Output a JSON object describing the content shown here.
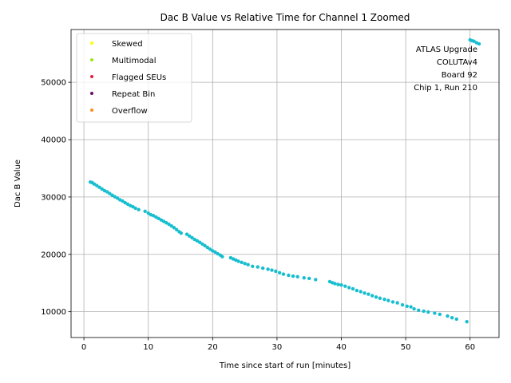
{
  "chart_data": {
    "type": "scatter",
    "title": "Dac B Value vs Relative Time for Channel 1 Zoomed",
    "xlabel": "Time since start of run [minutes]",
    "ylabel": "Dac B Value",
    "xlim": [
      -2,
      64.5
    ],
    "ylim": [
      5500,
      59200
    ],
    "xticks": [
      0,
      10,
      20,
      30,
      40,
      50,
      60
    ],
    "yticks": [
      10000,
      20000,
      30000,
      40000,
      50000
    ],
    "grid": true,
    "legend_position": "top-left",
    "legend": [
      {
        "name": "Skewed",
        "color": "#ffff00"
      },
      {
        "name": "Multimodal",
        "color": "#99e619"
      },
      {
        "name": "Flagged SEUs",
        "color": "#e0223c"
      },
      {
        "name": "Repeat Bin",
        "color": "#6b0f6b"
      },
      {
        "name": "Overflow",
        "color": "#ff8c1a"
      }
    ],
    "annotation": [
      "ATLAS Upgrade",
      "COLUTAv4",
      "Board 92",
      "Chip 1, Run 210"
    ],
    "series": [
      {
        "color": "#17becf",
        "points": [
          [
            1.0,
            32600
          ],
          [
            1.3,
            32500
          ],
          [
            1.6,
            32250
          ],
          [
            2.0,
            32000
          ],
          [
            2.4,
            31700
          ],
          [
            2.8,
            31400
          ],
          [
            3.2,
            31100
          ],
          [
            3.6,
            30900
          ],
          [
            4.0,
            30600
          ],
          [
            4.4,
            30300
          ],
          [
            4.8,
            30050
          ],
          [
            5.2,
            29800
          ],
          [
            5.6,
            29500
          ],
          [
            6.0,
            29300
          ],
          [
            6.4,
            29000
          ],
          [
            6.8,
            28750
          ],
          [
            7.2,
            28500
          ],
          [
            7.6,
            28300
          ],
          [
            8.0,
            28050
          ],
          [
            8.5,
            27800
          ],
          [
            9.5,
            27500
          ],
          [
            10.0,
            27200
          ],
          [
            10.4,
            26900
          ],
          [
            10.8,
            26750
          ],
          [
            11.2,
            26500
          ],
          [
            11.6,
            26250
          ],
          [
            12.0,
            26000
          ],
          [
            12.4,
            25750
          ],
          [
            12.8,
            25500
          ],
          [
            13.2,
            25250
          ],
          [
            13.6,
            24950
          ],
          [
            14.0,
            24650
          ],
          [
            14.4,
            24300
          ],
          [
            14.8,
            23950
          ],
          [
            15.1,
            23700
          ],
          [
            16.0,
            23500
          ],
          [
            16.4,
            23200
          ],
          [
            16.8,
            22900
          ],
          [
            17.2,
            22600
          ],
          [
            17.6,
            22350
          ],
          [
            18.0,
            22100
          ],
          [
            18.4,
            21800
          ],
          [
            18.8,
            21500
          ],
          [
            19.2,
            21200
          ],
          [
            19.6,
            20900
          ],
          [
            20.0,
            20600
          ],
          [
            20.4,
            20400
          ],
          [
            20.8,
            20100
          ],
          [
            21.2,
            19850
          ],
          [
            21.5,
            19600
          ],
          [
            22.8,
            19400
          ],
          [
            23.2,
            19200
          ],
          [
            23.6,
            19000
          ],
          [
            24.0,
            18800
          ],
          [
            24.5,
            18600
          ],
          [
            25.0,
            18400
          ],
          [
            25.5,
            18200
          ],
          [
            26.2,
            17900
          ],
          [
            27.0,
            17800
          ],
          [
            27.8,
            17600
          ],
          [
            28.6,
            17400
          ],
          [
            29.2,
            17250
          ],
          [
            29.8,
            17050
          ],
          [
            30.4,
            16800
          ],
          [
            31.0,
            16550
          ],
          [
            31.8,
            16350
          ],
          [
            32.5,
            16200
          ],
          [
            33.2,
            16100
          ],
          [
            34.2,
            15900
          ],
          [
            35.0,
            15800
          ],
          [
            36.0,
            15600
          ],
          [
            38.2,
            15250
          ],
          [
            38.6,
            15050
          ],
          [
            39.0,
            14900
          ],
          [
            39.5,
            14750
          ],
          [
            40.0,
            14650
          ],
          [
            40.6,
            14450
          ],
          [
            41.2,
            14200
          ],
          [
            41.8,
            14000
          ],
          [
            42.4,
            13700
          ],
          [
            43.0,
            13500
          ],
          [
            43.6,
            13250
          ],
          [
            44.2,
            13050
          ],
          [
            44.8,
            12800
          ],
          [
            45.4,
            12550
          ],
          [
            46.0,
            12350
          ],
          [
            46.7,
            12150
          ],
          [
            47.3,
            11950
          ],
          [
            48.0,
            11700
          ],
          [
            48.7,
            11550
          ],
          [
            49.5,
            11200
          ],
          [
            50.2,
            10950
          ],
          [
            50.8,
            10850
          ],
          [
            51.3,
            10500
          ],
          [
            52.0,
            10250
          ],
          [
            52.8,
            10100
          ],
          [
            53.5,
            9950
          ],
          [
            54.5,
            9750
          ],
          [
            55.3,
            9550
          ],
          [
            56.5,
            9250
          ],
          [
            57.2,
            8950
          ],
          [
            57.9,
            8700
          ],
          [
            59.5,
            8250
          ],
          [
            60.0,
            57400
          ],
          [
            60.3,
            57250
          ],
          [
            60.6,
            57150
          ],
          [
            61.0,
            56900
          ],
          [
            61.4,
            56700
          ]
        ]
      }
    ]
  }
}
